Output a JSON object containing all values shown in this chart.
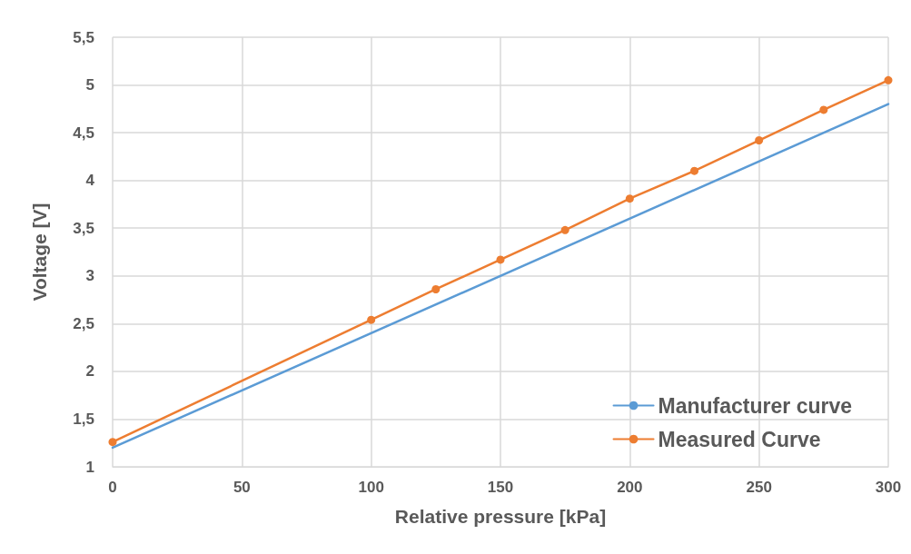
{
  "chart_data": {
    "type": "line",
    "xlabel": "Relative pressure [kPa]",
    "ylabel": "Voltage [V]",
    "xlim": [
      0,
      300
    ],
    "xticks": [
      0,
      50,
      100,
      150,
      200,
      250,
      300
    ],
    "ylim": [
      1,
      5.5
    ],
    "yticks": [
      1,
      {
        "value": 1.5,
        "label": "1,5"
      },
      2,
      {
        "value": 2.5,
        "label": "2,5"
      },
      3,
      {
        "value": 3.5,
        "label": "3,5"
      },
      4,
      {
        "value": 4.5,
        "label": "4,5"
      },
      5,
      {
        "value": 5.5,
        "label": "5,5"
      }
    ],
    "grid": true,
    "legend": "bottom right",
    "line_style": "solid",
    "series": [
      {
        "name": "Manufacturer curve",
        "color": "#5b9bd5",
        "marker": "none",
        "x": [
          0,
          300
        ],
        "values": [
          1.2,
          4.8
        ]
      },
      {
        "name": "Measured Curve",
        "color": "#ed7d31",
        "marker": "circle",
        "x": [
          0,
          100,
          125,
          150,
          175,
          200,
          225,
          250,
          275,
          300
        ],
        "values": [
          1.26,
          2.54,
          2.86,
          3.17,
          3.48,
          3.81,
          4.1,
          4.42,
          4.74,
          5.05
        ]
      }
    ]
  }
}
